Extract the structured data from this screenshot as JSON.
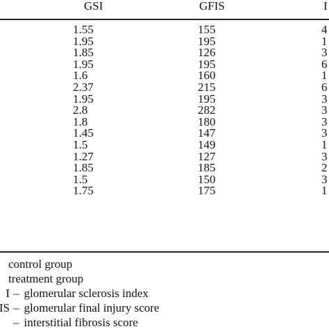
{
  "table": {
    "headers": {
      "gsi": "GSI",
      "gfis": "GFIS",
      "last": "I"
    },
    "rows": [
      {
        "gsi": "1.55",
        "gfis": "155",
        "last": "4"
      },
      {
        "gsi": "1.95",
        "gfis": "195",
        "last": "1"
      },
      {
        "gsi": "1.85",
        "gfis": "126",
        "last": "3"
      },
      {
        "gsi": "1.95",
        "gfis": "195",
        "last": "6"
      },
      {
        "gsi": "1.6",
        "gfis": "160",
        "last": "1"
      },
      {
        "gsi": "2.37",
        "gfis": "215",
        "last": "6"
      },
      {
        "gsi": "1.95",
        "gfis": "195",
        "last": "3"
      },
      {
        "gsi": "2.8",
        "gfis": "282",
        "last": "3"
      },
      {
        "gsi": "1.8",
        "gfis": "180",
        "last": "3"
      },
      {
        "gsi": "1.45",
        "gfis": "147",
        "last": "3"
      },
      {
        "gsi": "1.5",
        "gfis": "149",
        "last": "1"
      },
      {
        "gsi": "1.27",
        "gfis": "127",
        "last": "3"
      },
      {
        "gsi": "1.85",
        "gfis": "185",
        "last": "2"
      },
      {
        "gsi": "1.5",
        "gfis": "150",
        "last": "3"
      },
      {
        "gsi": "1.75",
        "gfis": "175",
        "last": "1"
      }
    ]
  },
  "notes": [
    {
      "abbr": "",
      "text": "control group"
    },
    {
      "abbr": "",
      "text": "treatment group"
    },
    {
      "abbr": "I",
      "dash": "–",
      "text": "glomerular sclerosis index"
    },
    {
      "abbr": "IS",
      "dash": "–",
      "text": "glomerular final injury score"
    },
    {
      "abbr": "",
      "dash": "–",
      "text": "interstitial fibrosis score"
    }
  ]
}
